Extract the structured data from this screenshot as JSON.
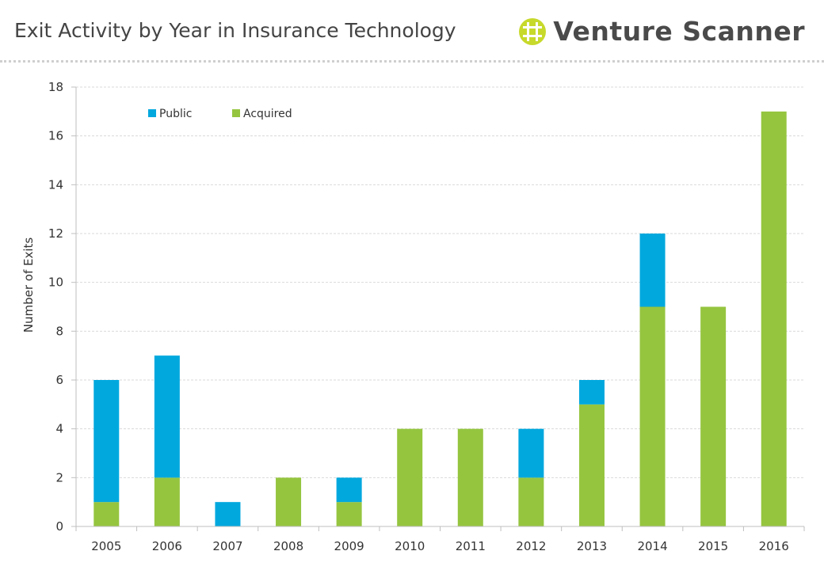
{
  "page": {
    "title": "Exit Activity by Year in Insurance Technology",
    "brand": "Venture Scanner",
    "brand_logo": "venture-scanner-logo-icon"
  },
  "colors": {
    "public": "#00a8de",
    "acquired": "#95c53f",
    "grid": "#d9d9d9",
    "axis": "#bfbfbf",
    "logo": "#c7d92b"
  },
  "chart_data": {
    "type": "bar",
    "stacked": true,
    "title": "",
    "xlabel": "",
    "ylabel": "Number of Exits",
    "categories": [
      "2005",
      "2006",
      "2007",
      "2008",
      "2009",
      "2010",
      "2011",
      "2012",
      "2013",
      "2014",
      "2015",
      "2016"
    ],
    "series": [
      {
        "name": "Acquired",
        "color": "#95c53f",
        "values": [
          1,
          2,
          0,
          2,
          1,
          4,
          4,
          2,
          5,
          9,
          9,
          17
        ]
      },
      {
        "name": "Public",
        "color": "#00a8de",
        "values": [
          5,
          5,
          1,
          0,
          1,
          0,
          0,
          2,
          1,
          3,
          0,
          0
        ]
      }
    ],
    "ylim": [
      0,
      18
    ],
    "yticks": [
      0,
      2,
      4,
      6,
      8,
      10,
      12,
      14,
      16,
      18
    ],
    "legend": {
      "position": "top-left",
      "entries": [
        "Public",
        "Acquired"
      ]
    },
    "grid": true
  }
}
